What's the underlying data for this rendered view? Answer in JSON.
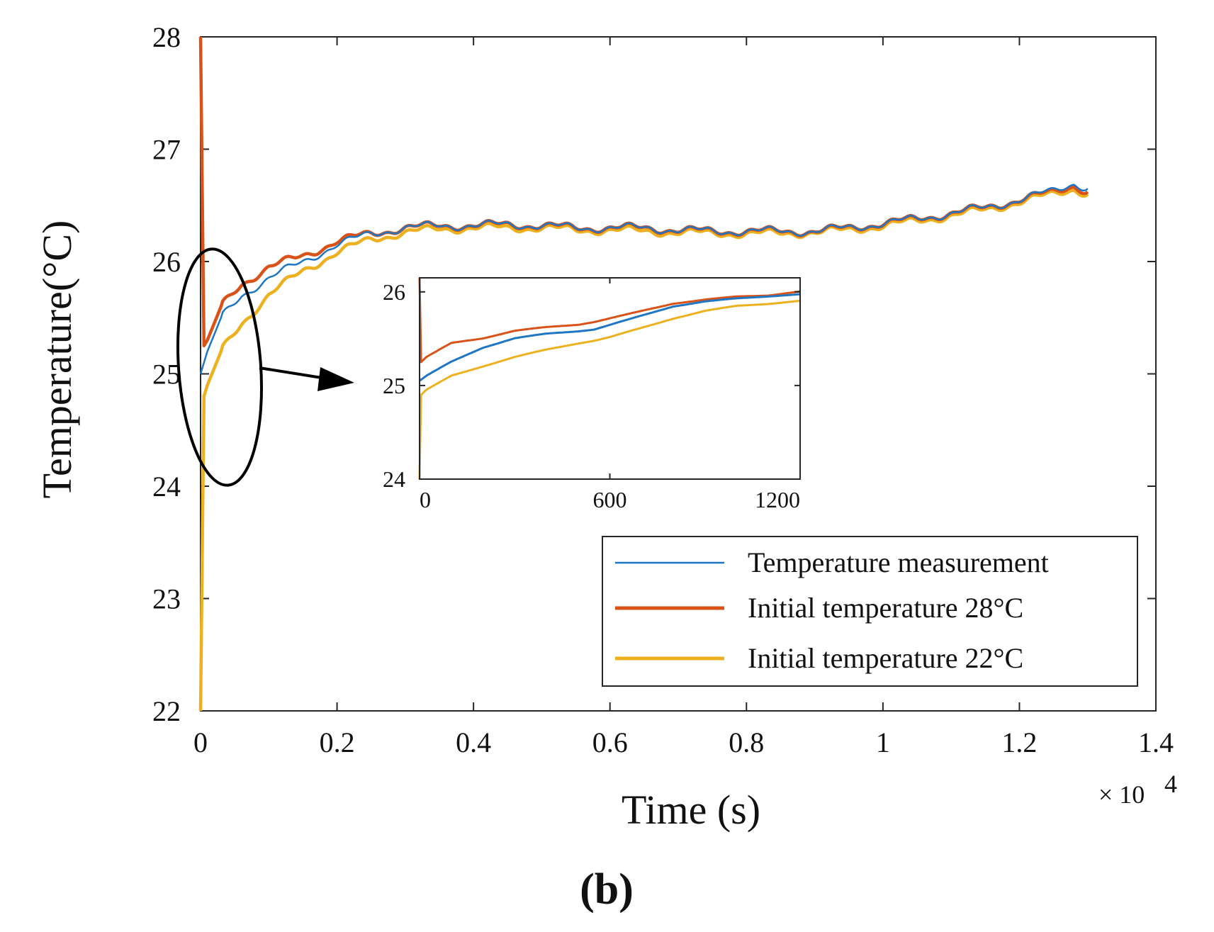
{
  "chart_data": {
    "type": "line",
    "panel_label": "(b)",
    "xlabel": "Time (s)",
    "ylabel": "Temperature(°C)",
    "x_exponent_label": "× 10",
    "x_exponent_power": "4",
    "xlim": [
      0,
      14000
    ],
    "ylim": [
      22,
      28
    ],
    "x_ticks": [
      0,
      2000,
      4000,
      6000,
      8000,
      10000,
      12000,
      14000
    ],
    "x_tick_labels": [
      "0",
      "0.2",
      "0.4",
      "0.6",
      "0.8",
      "1",
      "1.2",
      "1.4"
    ],
    "y_ticks": [
      22,
      23,
      24,
      25,
      26,
      27,
      28
    ],
    "y_tick_labels": [
      "22",
      "23",
      "24",
      "25",
      "26",
      "27",
      "28"
    ],
    "series": [
      {
        "name": "Temperature measurement",
        "color": "#1f77c4",
        "x": [
          0,
          100,
          300,
          600,
          1000,
          1500,
          2000,
          2500,
          3000,
          3500,
          4000,
          4500,
          5000,
          5500,
          6000,
          6500,
          7000,
          7500,
          8000,
          8500,
          9000,
          9500,
          10000,
          10500,
          11000,
          11500,
          12000,
          12500,
          12800,
          13000
        ],
        "y": [
          25.0,
          25.2,
          25.5,
          25.7,
          25.85,
          26.0,
          26.15,
          26.25,
          26.3,
          26.32,
          26.32,
          26.33,
          26.32,
          26.3,
          26.3,
          26.3,
          26.28,
          26.27,
          26.27,
          26.27,
          26.27,
          26.3,
          26.34,
          26.38,
          26.43,
          26.48,
          26.55,
          26.63,
          26.7,
          26.65
        ]
      },
      {
        "name": "Initial temperature 28°C",
        "color": "#d95319",
        "x": [
          0,
          50,
          100,
          300,
          600,
          1000,
          1500,
          2000,
          2500,
          3000,
          3500,
          4000,
          4500,
          5000,
          5500,
          6000,
          6500,
          7000,
          7500,
          8000,
          8500,
          9000,
          9500,
          10000,
          10500,
          11000,
          11500,
          12000,
          12500,
          12800,
          13000
        ],
        "y": [
          28.0,
          25.25,
          25.3,
          25.6,
          25.8,
          25.95,
          26.05,
          26.18,
          26.25,
          26.3,
          26.32,
          26.32,
          26.33,
          26.32,
          26.3,
          26.3,
          26.3,
          26.28,
          26.27,
          26.27,
          26.27,
          26.27,
          26.3,
          26.34,
          26.38,
          26.43,
          26.48,
          26.55,
          26.62,
          26.68,
          26.62
        ]
      },
      {
        "name": "Initial temperature 22°C",
        "color": "#edb120",
        "x": [
          0,
          50,
          100,
          300,
          600,
          1000,
          1500,
          2000,
          2500,
          3000,
          3500,
          4000,
          4500,
          5000,
          5500,
          6000,
          6500,
          7000,
          7500,
          8000,
          8500,
          9000,
          9500,
          10000,
          10500,
          11000,
          11500,
          12000,
          12500,
          12800,
          13000
        ],
        "y": [
          22.0,
          24.8,
          24.9,
          25.2,
          25.45,
          25.7,
          25.92,
          26.08,
          26.2,
          26.26,
          26.29,
          26.3,
          26.3,
          26.3,
          26.28,
          26.28,
          26.27,
          26.26,
          26.25,
          26.25,
          26.25,
          26.26,
          26.28,
          26.32,
          26.36,
          26.41,
          26.46,
          26.53,
          26.6,
          26.65,
          26.6
        ]
      }
    ],
    "inset": {
      "xlim": [
        0,
        1200
      ],
      "ylim": [
        24,
        26.15
      ],
      "x_ticks": [
        0,
        600,
        1200
      ],
      "x_tick_labels": [
        "0",
        "600",
        "1200"
      ],
      "y_ticks": [
        24,
        25,
        26
      ],
      "y_tick_labels": [
        "24",
        "25",
        "26"
      ],
      "series": [
        {
          "name": "Temperature measurement",
          "x": [
            0,
            20,
            100,
            200,
            300,
            400,
            500,
            550,
            600,
            700,
            800,
            900,
            1000,
            1100,
            1200
          ],
          "y": [
            25.05,
            25.1,
            25.25,
            25.4,
            25.5,
            25.55,
            25.58,
            25.6,
            25.65,
            25.75,
            25.85,
            25.9,
            25.93,
            25.95,
            25.97
          ]
        },
        {
          "name": "Initial temperature 28°C",
          "x": [
            0,
            5,
            20,
            100,
            200,
            300,
            400,
            500,
            550,
            600,
            700,
            800,
            900,
            1000,
            1100,
            1200
          ],
          "y": [
            26.15,
            25.25,
            25.3,
            25.45,
            25.5,
            25.58,
            25.62,
            25.65,
            25.68,
            25.72,
            25.8,
            25.88,
            25.92,
            25.95,
            25.96,
            26.0
          ]
        },
        {
          "name": "Initial temperature 22°C",
          "x": [
            0,
            5,
            20,
            100,
            200,
            300,
            400,
            500,
            550,
            600,
            700,
            800,
            900,
            1000,
            1100,
            1200
          ],
          "y": [
            24.0,
            24.9,
            24.95,
            25.1,
            25.2,
            25.3,
            25.38,
            25.45,
            25.48,
            25.52,
            25.62,
            25.72,
            25.8,
            25.85,
            25.87,
            25.9
          ]
        }
      ]
    }
  }
}
